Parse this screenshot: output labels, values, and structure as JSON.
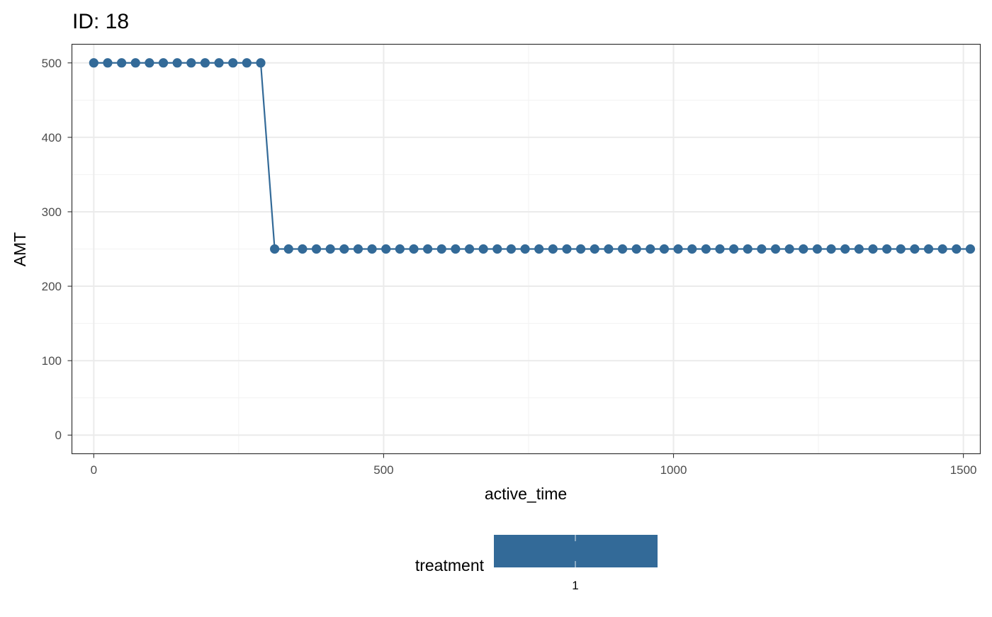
{
  "chart_data": {
    "type": "line",
    "title": "ID: 18",
    "xlabel": "active_time",
    "ylabel": "AMT",
    "xlim": [
      -37.7,
      1529.2
    ],
    "ylim": [
      -25,
      525
    ],
    "x_ticks": [
      0,
      500,
      1000,
      1500
    ],
    "x_tick_labels": [
      "0",
      "500",
      "1000",
      "1500"
    ],
    "x_minor_ticks": [
      250,
      750,
      1250
    ],
    "y_ticks": [
      0,
      100,
      200,
      300,
      400,
      500
    ],
    "y_tick_labels": [
      "0",
      "100",
      "200",
      "300",
      "400",
      "500"
    ],
    "y_minor_ticks": [
      50,
      150,
      250,
      350,
      450
    ],
    "grid": true,
    "color": "#336a98",
    "series": [
      {
        "points": [
          [
            0,
            500
          ],
          [
            24,
            500
          ],
          [
            48,
            500
          ],
          [
            72,
            500
          ],
          [
            96,
            500
          ],
          [
            120,
            500
          ],
          [
            144,
            500
          ],
          [
            168,
            500
          ],
          [
            192,
            500
          ],
          [
            216,
            500
          ],
          [
            240,
            500
          ],
          [
            264,
            500
          ],
          [
            288,
            500
          ],
          [
            312,
            250
          ],
          [
            336,
            250
          ],
          [
            360,
            250
          ],
          [
            384,
            250
          ],
          [
            408,
            250
          ],
          [
            432,
            250
          ],
          [
            456,
            250
          ],
          [
            480,
            250
          ],
          [
            504,
            250
          ],
          [
            528,
            250
          ],
          [
            552,
            250
          ],
          [
            576,
            250
          ],
          [
            600,
            250
          ],
          [
            624,
            250
          ],
          [
            648,
            250
          ],
          [
            672,
            250
          ],
          [
            696,
            250
          ],
          [
            720,
            250
          ],
          [
            744,
            250
          ],
          [
            768,
            250
          ],
          [
            792,
            250
          ],
          [
            816,
            250
          ],
          [
            840,
            250
          ],
          [
            864,
            250
          ],
          [
            888,
            250
          ],
          [
            912,
            250
          ],
          [
            936,
            250
          ],
          [
            960,
            250
          ],
          [
            984,
            250
          ],
          [
            1008,
            250
          ],
          [
            1032,
            250
          ],
          [
            1056,
            250
          ],
          [
            1080,
            250
          ],
          [
            1104,
            250
          ],
          [
            1128,
            250
          ],
          [
            1152,
            250
          ],
          [
            1176,
            250
          ],
          [
            1200,
            250
          ],
          [
            1224,
            250
          ],
          [
            1248,
            250
          ],
          [
            1272,
            250
          ],
          [
            1296,
            250
          ],
          [
            1320,
            250
          ],
          [
            1344,
            250
          ],
          [
            1368,
            250
          ],
          [
            1392,
            250
          ],
          [
            1416,
            250
          ],
          [
            1440,
            250
          ],
          [
            1464,
            250
          ],
          [
            1488,
            250
          ],
          [
            1512,
            250
          ]
        ]
      }
    ],
    "legend": {
      "title": "treatment",
      "placement": "bottom",
      "colorbar_label": "1",
      "color": "#336a98"
    }
  }
}
